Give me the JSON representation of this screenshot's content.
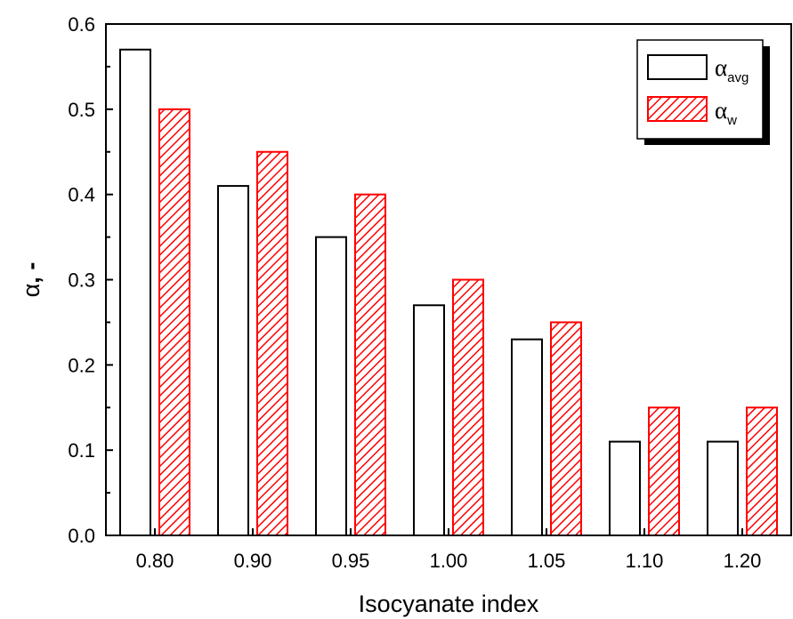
{
  "chart_data": {
    "type": "bar",
    "title": "",
    "xlabel": "Isocyanate index",
    "ylabel": "α, -",
    "ylabel_symbol": "α",
    "ylabel_suffix": ", -",
    "categories": [
      "0.80",
      "0.90",
      "0.95",
      "1.00",
      "1.05",
      "1.10",
      "1.20"
    ],
    "series": [
      {
        "name": "α_avg",
        "symbol": "α",
        "subscript": "avg",
        "fill": "#ffffff",
        "stroke": "#000000",
        "values": [
          0.57,
          0.41,
          0.35,
          0.27,
          0.23,
          0.11,
          0.11
        ]
      },
      {
        "name": "α_w",
        "symbol": "α",
        "subscript": "w",
        "fill": "hatch",
        "stroke": "#ff0000",
        "values": [
          0.5,
          0.45,
          0.4,
          0.3,
          0.25,
          0.15,
          0.15
        ]
      }
    ],
    "ylim": [
      0,
      0.6
    ],
    "yticks": [
      "0.0",
      "0.1",
      "0.2",
      "0.3",
      "0.4",
      "0.5",
      "0.6"
    ],
    "grid": false,
    "legend": "top-right",
    "colors": {
      "series1_stroke": "#000000",
      "series2_stroke": "#ff0000",
      "axis": "#000000"
    }
  }
}
